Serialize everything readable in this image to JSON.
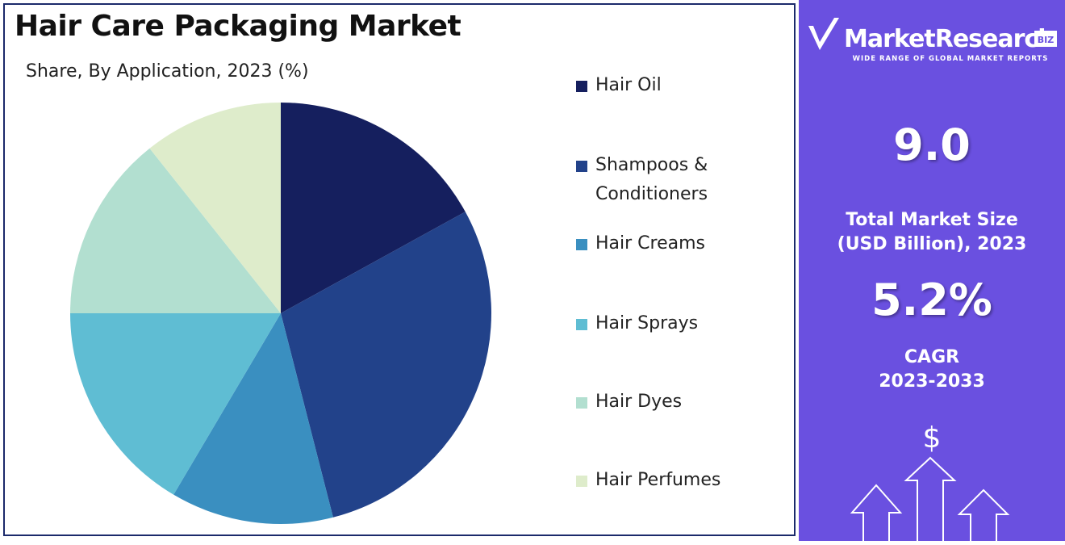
{
  "chart_data": {
    "type": "pie",
    "title": "Hair Care Packaging Market",
    "subtitle": "Share, By Application, 2023 (%)",
    "categories": [
      "Hair Oil",
      "Shampoos & Conditioners",
      "Hair Creams",
      "Hair Sprays",
      "Hair Dyes",
      "Hair Perfumes"
    ],
    "values": [
      17,
      29,
      12.5,
      16.5,
      14.3,
      10.7
    ],
    "colors": [
      "#151f5e",
      "#22428a",
      "#3a8fc0",
      "#5fbdd3",
      "#b2dfd0",
      "#deeccb"
    ]
  },
  "panel": {
    "logo": "MarketResearch",
    "logo_badge": "BIZ",
    "tagline": "WIDE RANGE OF GLOBAL MARKET REPORTS",
    "market_size": "9.0",
    "market_size_label": "Total Market Size (USD Billion), 2023",
    "cagr": "5.2%",
    "cagr_label": "CAGR 2023-2033",
    "icon": "$"
  }
}
